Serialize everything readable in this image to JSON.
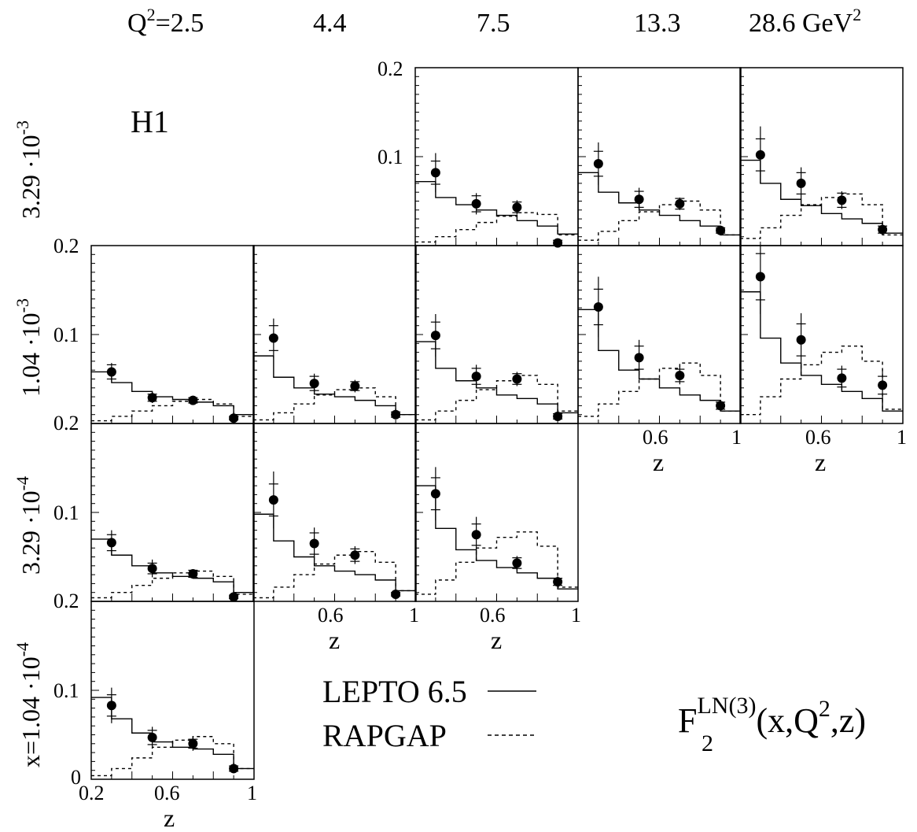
{
  "colors": {
    "ink": "#000000",
    "background": "#ffffff"
  },
  "header": {
    "q2_prefix": "Q",
    "q2_exp": "2",
    "q2_eq": "=2.5",
    "columns": [
      "4.4",
      "7.5",
      "13.3"
    ],
    "last_value": "28.6 GeV",
    "last_exp": "2"
  },
  "experiment_label": "H1",
  "row_labels": [
    {
      "mantissa": "3.29 ·10",
      "exp": "-3"
    },
    {
      "mantissa": "1.04 ·10",
      "exp": "-3"
    },
    {
      "mantissa": "3.29 ·10",
      "exp": "-4"
    },
    {
      "mantissa": "x=1.04 ·10",
      "exp": "-4"
    }
  ],
  "y_ticks": {
    "zero": "0",
    "mid": "0.1",
    "top": "0.2"
  },
  "x_ticks": {
    "left": "0.2",
    "mid": "0.6",
    "right": "1"
  },
  "x_label": "z",
  "legend": {
    "lepto": "LEPTO 6.5",
    "rapgap": "RAPGAP"
  },
  "formula": {
    "F": "F",
    "sub": "2",
    "sup": "LN(3)",
    "args_a": "(x,Q",
    "args_exp": "2",
    "args_b": ",z)"
  },
  "chart_data": {
    "type": "scatter",
    "title": "F2^LN(3)(x,Q^2,z)",
    "xlabel": "z",
    "xlim": [
      0.2,
      1.0
    ],
    "ylim": [
      0,
      0.2
    ],
    "columns_Q2_GeV2": [
      2.5,
      4.4,
      7.5,
      13.3,
      28.6
    ],
    "rows_x": [
      "3.29e-3",
      "1.04e-3",
      "3.29e-4",
      "1.04e-4"
    ],
    "series_names": [
      "Data",
      "LEPTO 6.5",
      "RAPGAP"
    ],
    "z_points": [
      0.3,
      0.5,
      0.7,
      0.9
    ],
    "panels": [
      {
        "x": "3.29e-3",
        "Q2": 7.5,
        "data": [
          [
            0.3,
            0.082,
            0.022,
            0.013
          ],
          [
            0.5,
            0.047,
            0.012,
            0.009
          ],
          [
            0.7,
            0.043,
            0.008,
            0.006
          ],
          [
            0.9,
            0.003,
            0.004,
            0.003
          ]
        ],
        "lepto_edges": [
          0.2,
          0.3,
          0.4,
          0.5,
          0.6,
          0.7,
          0.8,
          0.9,
          1.0
        ],
        "lepto": [
          0.072,
          0.054,
          0.046,
          0.04,
          0.034,
          0.028,
          0.022,
          0.013
        ],
        "rapgap": [
          0.004,
          0.01,
          0.018,
          0.026,
          0.033,
          0.037,
          0.035,
          0.012
        ]
      },
      {
        "x": "3.29e-3",
        "Q2": 13.3,
        "data": [
          [
            0.3,
            0.092,
            0.024,
            0.014
          ],
          [
            0.5,
            0.052,
            0.013,
            0.009
          ],
          [
            0.7,
            0.047,
            0.007,
            0.006
          ],
          [
            0.9,
            0.017,
            0.004,
            0.003
          ]
        ],
        "lepto_edges": [
          0.2,
          0.3,
          0.4,
          0.5,
          0.6,
          0.7,
          0.8,
          0.9,
          1.0
        ],
        "lepto": [
          0.082,
          0.06,
          0.048,
          0.04,
          0.034,
          0.028,
          0.022,
          0.012
        ],
        "rapgap": [
          0.006,
          0.016,
          0.028,
          0.038,
          0.046,
          0.05,
          0.04,
          0.012
        ]
      },
      {
        "x": "3.29e-3",
        "Q2": 28.6,
        "data": [
          [
            0.3,
            0.102,
            0.032,
            0.018
          ],
          [
            0.5,
            0.07,
            0.018,
            0.012
          ],
          [
            0.7,
            0.051,
            0.01,
            0.008
          ],
          [
            0.9,
            0.018,
            0.006,
            0.004
          ]
        ],
        "lepto_edges": [
          0.2,
          0.3,
          0.4,
          0.5,
          0.6,
          0.7,
          0.8,
          0.9,
          1.0
        ],
        "lepto": [
          0.096,
          0.07,
          0.052,
          0.045,
          0.036,
          0.03,
          0.025,
          0.014
        ],
        "rapgap": [
          0.008,
          0.02,
          0.034,
          0.046,
          0.054,
          0.058,
          0.046,
          0.012
        ]
      },
      {
        "x": "1.04e-3",
        "Q2": 2.5,
        "data": [
          [
            0.3,
            0.058,
            0.01,
            0.008
          ],
          [
            0.5,
            0.029,
            0.006,
            0.004
          ],
          [
            0.7,
            0.026,
            0.004,
            0.003
          ],
          [
            0.9,
            0.006,
            0.002,
            0.002
          ]
        ],
        "lepto_edges": [
          0.2,
          0.3,
          0.4,
          0.5,
          0.6,
          0.7,
          0.8,
          0.9,
          1.0
        ],
        "lepto": [
          0.058,
          0.046,
          0.036,
          0.03,
          0.027,
          0.024,
          0.02,
          0.01
        ],
        "rapgap": [
          0.003,
          0.008,
          0.014,
          0.02,
          0.025,
          0.027,
          0.022,
          0.008
        ]
      },
      {
        "x": "1.04e-3",
        "Q2": 4.4,
        "data": [
          [
            0.3,
            0.096,
            0.022,
            0.014
          ],
          [
            0.5,
            0.045,
            0.011,
            0.008
          ],
          [
            0.7,
            0.042,
            0.007,
            0.005
          ],
          [
            0.9,
            0.01,
            0.004,
            0.003
          ]
        ],
        "lepto_edges": [
          0.2,
          0.3,
          0.4,
          0.5,
          0.6,
          0.7,
          0.8,
          0.9,
          1.0
        ],
        "lepto": [
          0.076,
          0.052,
          0.04,
          0.033,
          0.03,
          0.026,
          0.02,
          0.01
        ],
        "rapgap": [
          0.004,
          0.012,
          0.022,
          0.032,
          0.038,
          0.04,
          0.03,
          0.01
        ]
      },
      {
        "x": "1.04e-3",
        "Q2": 7.5,
        "data": [
          [
            0.3,
            0.099,
            0.024,
            0.015
          ],
          [
            0.5,
            0.053,
            0.013,
            0.009
          ],
          [
            0.7,
            0.05,
            0.008,
            0.006
          ],
          [
            0.9,
            0.008,
            0.004,
            0.003
          ]
        ],
        "lepto_edges": [
          0.2,
          0.3,
          0.4,
          0.5,
          0.6,
          0.7,
          0.8,
          0.9,
          1.0
        ],
        "lepto": [
          0.092,
          0.062,
          0.048,
          0.04,
          0.032,
          0.028,
          0.022,
          0.012
        ],
        "rapgap": [
          0.004,
          0.014,
          0.026,
          0.038,
          0.048,
          0.054,
          0.044,
          0.014
        ]
      },
      {
        "x": "1.04e-3",
        "Q2": 13.3,
        "data": [
          [
            0.3,
            0.131,
            0.034,
            0.02
          ],
          [
            0.5,
            0.074,
            0.02,
            0.013
          ],
          [
            0.7,
            0.054,
            0.01,
            0.007
          ],
          [
            0.9,
            0.02,
            0.006,
            0.004
          ]
        ],
        "lepto_edges": [
          0.2,
          0.3,
          0.4,
          0.5,
          0.6,
          0.7,
          0.8,
          0.9,
          1.0
        ],
        "lepto": [
          0.128,
          0.082,
          0.06,
          0.05,
          0.04,
          0.032,
          0.026,
          0.014
        ],
        "rapgap": [
          0.008,
          0.022,
          0.036,
          0.05,
          0.062,
          0.068,
          0.054,
          0.014
        ]
      },
      {
        "x": "1.04e-3",
        "Q2": 28.6,
        "data": [
          [
            0.3,
            0.165,
            0.042,
            0.026
          ],
          [
            0.5,
            0.094,
            0.03,
            0.018
          ],
          [
            0.7,
            0.051,
            0.014,
            0.01
          ],
          [
            0.9,
            0.043,
            0.018,
            0.01
          ]
        ],
        "lepto_edges": [
          0.2,
          0.3,
          0.4,
          0.5,
          0.6,
          0.7,
          0.8,
          0.9,
          1.0
        ],
        "lepto": [
          0.148,
          0.096,
          0.068,
          0.054,
          0.044,
          0.036,
          0.028,
          0.014
        ],
        "rapgap": [
          0.01,
          0.03,
          0.05,
          0.066,
          0.08,
          0.087,
          0.07,
          0.016
        ]
      },
      {
        "x": "3.29e-4",
        "Q2": 2.5,
        "data": [
          [
            0.3,
            0.066,
            0.014,
            0.009
          ],
          [
            0.5,
            0.037,
            0.01,
            0.006
          ],
          [
            0.7,
            0.031,
            0.005,
            0.004
          ],
          [
            0.9,
            0.005,
            0.002,
            0.002
          ]
        ],
        "lepto_edges": [
          0.2,
          0.3,
          0.4,
          0.5,
          0.6,
          0.7,
          0.8,
          0.9,
          1.0
        ],
        "lepto": [
          0.07,
          0.052,
          0.04,
          0.032,
          0.028,
          0.026,
          0.022,
          0.01
        ],
        "rapgap": [
          0.004,
          0.01,
          0.018,
          0.026,
          0.032,
          0.034,
          0.028,
          0.008
        ]
      },
      {
        "x": "3.29e-4",
        "Q2": 4.4,
        "data": [
          [
            0.3,
            0.114,
            0.032,
            0.018
          ],
          [
            0.5,
            0.065,
            0.018,
            0.012
          ],
          [
            0.7,
            0.052,
            0.01,
            0.007
          ],
          [
            0.9,
            0.008,
            0.003,
            0.002
          ]
        ],
        "lepto_edges": [
          0.2,
          0.3,
          0.4,
          0.5,
          0.6,
          0.7,
          0.8,
          0.9,
          1.0
        ],
        "lepto": [
          0.098,
          0.068,
          0.05,
          0.04,
          0.034,
          0.03,
          0.024,
          0.012
        ],
        "rapgap": [
          0.004,
          0.016,
          0.03,
          0.042,
          0.052,
          0.056,
          0.044,
          0.012
        ]
      },
      {
        "x": "3.29e-4",
        "Q2": 7.5,
        "data": [
          [
            0.3,
            0.121,
            0.03,
            0.018
          ],
          [
            0.5,
            0.075,
            0.02,
            0.012
          ],
          [
            0.7,
            0.043,
            0.008,
            0.006
          ],
          [
            0.9,
            0.022,
            0.006,
            0.004
          ]
        ],
        "lepto_edges": [
          0.2,
          0.3,
          0.4,
          0.5,
          0.6,
          0.7,
          0.8,
          0.9,
          1.0
        ],
        "lepto": [
          0.13,
          0.082,
          0.058,
          0.046,
          0.038,
          0.032,
          0.026,
          0.014
        ],
        "rapgap": [
          0.008,
          0.024,
          0.044,
          0.06,
          0.072,
          0.078,
          0.062,
          0.016
        ]
      },
      {
        "x": "1.04e-4",
        "Q2": 2.5,
        "data": [
          [
            0.3,
            0.083,
            0.02,
            0.012
          ],
          [
            0.5,
            0.047,
            0.012,
            0.008
          ],
          [
            0.7,
            0.04,
            0.008,
            0.005
          ],
          [
            0.9,
            0.012,
            0.005,
            0.003
          ]
        ],
        "lepto_edges": [
          0.2,
          0.3,
          0.4,
          0.5,
          0.6,
          0.7,
          0.8,
          0.9,
          1.0
        ],
        "lepto": [
          0.092,
          0.068,
          0.052,
          0.042,
          0.036,
          0.034,
          0.028,
          0.012
        ],
        "rapgap": [
          0.004,
          0.012,
          0.024,
          0.036,
          0.044,
          0.048,
          0.04,
          0.012
        ]
      }
    ]
  }
}
